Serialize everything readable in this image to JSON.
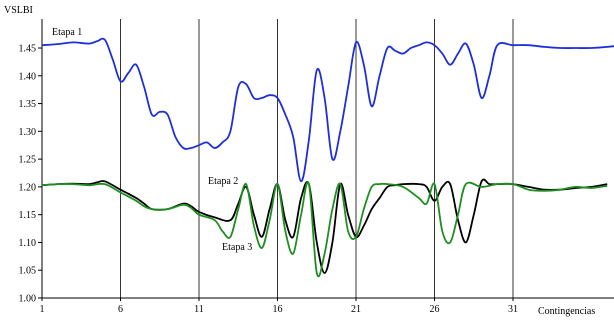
{
  "chart_data": {
    "type": "line",
    "ylabel": "VSLBI",
    "xlabel": "Contingencias",
    "xlim": [
      1,
      38
    ],
    "ylim": [
      1.0,
      1.45
    ],
    "x_ticks": [
      1,
      6,
      11,
      16,
      21,
      26,
      31
    ],
    "y_ticks": [
      1.0,
      1.05,
      1.1,
      1.15,
      1.2,
      1.25,
      1.3,
      1.35,
      1.4,
      1.45
    ],
    "y_tick_labels": [
      "1.00",
      "1.05",
      "1.10",
      "1.15",
      "1.20",
      "1.25",
      "1.30",
      "1.35",
      "1.40",
      "1.45"
    ],
    "grid": "vertical",
    "annotations": [
      "Etapa 1",
      "Etapa 2",
      "Etapa 3"
    ],
    "series": [
      {
        "name": "Etapa 1",
        "color": "#1f2fd6",
        "x": [
          1,
          2,
          3,
          4,
          4.5,
          5,
          5.5,
          6,
          6.5,
          7,
          7.5,
          8,
          8.5,
          9,
          9.5,
          10,
          10.5,
          11,
          11.5,
          12,
          12.5,
          13,
          13.5,
          14,
          14.5,
          15,
          15.5,
          16,
          16.5,
          17,
          17.5,
          18,
          18.5,
          19,
          19.5,
          20,
          20.5,
          21,
          21.5,
          22,
          22.5,
          23,
          23.5,
          24,
          24.5,
          25,
          25.5,
          26,
          26.5,
          27,
          27.5,
          28,
          28.5,
          29,
          29.5,
          30,
          31,
          32,
          33,
          34,
          35,
          36,
          37,
          38
        ],
        "y": [
          1.455,
          1.457,
          1.46,
          1.458,
          1.462,
          1.465,
          1.43,
          1.39,
          1.405,
          1.42,
          1.38,
          1.33,
          1.335,
          1.33,
          1.29,
          1.27,
          1.27,
          1.275,
          1.28,
          1.27,
          1.28,
          1.3,
          1.38,
          1.385,
          1.36,
          1.36,
          1.365,
          1.36,
          1.33,
          1.29,
          1.21,
          1.285,
          1.41,
          1.36,
          1.25,
          1.3,
          1.38,
          1.46,
          1.42,
          1.345,
          1.4,
          1.45,
          1.445,
          1.44,
          1.45,
          1.455,
          1.46,
          1.455,
          1.44,
          1.42,
          1.44,
          1.458,
          1.42,
          1.36,
          1.4,
          1.455,
          1.455,
          1.455,
          1.452,
          1.45,
          1.45,
          1.45,
          1.452,
          1.455
        ]
      },
      {
        "name": "Etapa 2",
        "color": "#000000",
        "x": [
          1,
          2,
          3,
          4,
          4.5,
          5,
          6,
          7,
          7.5,
          8,
          9,
          10,
          10.5,
          11,
          12,
          13,
          13.5,
          14,
          14.5,
          15,
          15.5,
          16,
          16.5,
          17,
          17.5,
          18,
          18.5,
          19,
          19.5,
          20,
          20.5,
          21,
          21.5,
          22,
          22.5,
          23,
          23.5,
          24,
          25,
          25.5,
          26,
          26.5,
          27,
          27.5,
          28,
          28.5,
          29,
          29.5,
          30,
          31,
          32,
          33,
          34,
          35,
          36,
          37
        ],
        "y": [
          1.203,
          1.205,
          1.206,
          1.205,
          1.208,
          1.21,
          1.195,
          1.18,
          1.17,
          1.16,
          1.16,
          1.17,
          1.165,
          1.155,
          1.145,
          1.14,
          1.17,
          1.2,
          1.15,
          1.11,
          1.16,
          1.205,
          1.14,
          1.11,
          1.18,
          1.205,
          1.1,
          1.045,
          1.1,
          1.205,
          1.15,
          1.11,
          1.13,
          1.16,
          1.18,
          1.2,
          1.203,
          1.205,
          1.205,
          1.2,
          1.175,
          1.2,
          1.205,
          1.14,
          1.1,
          1.15,
          1.21,
          1.205,
          1.205,
          1.205,
          1.2,
          1.195,
          1.195,
          1.198,
          1.2,
          1.205
        ]
      },
      {
        "name": "Etapa 3",
        "color": "#1e8f1e",
        "x": [
          1,
          2,
          3,
          4,
          5,
          6,
          7,
          7.5,
          8,
          9,
          10,
          10.5,
          11,
          12,
          12.5,
          13,
          13.5,
          14,
          14.5,
          15,
          15.5,
          16,
          16.5,
          17,
          17.5,
          18,
          18.5,
          19,
          19.5,
          20,
          20.5,
          21,
          21.5,
          22,
          22.5,
          23,
          24,
          25,
          25.5,
          26,
          26.5,
          27,
          27.5,
          28,
          29,
          30,
          31,
          32,
          33,
          34,
          35,
          36,
          37
        ],
        "y": [
          1.203,
          1.205,
          1.205,
          1.203,
          1.205,
          1.19,
          1.175,
          1.165,
          1.16,
          1.16,
          1.168,
          1.162,
          1.15,
          1.14,
          1.12,
          1.11,
          1.16,
          1.205,
          1.13,
          1.09,
          1.14,
          1.205,
          1.12,
          1.08,
          1.15,
          1.205,
          1.045,
          1.08,
          1.16,
          1.205,
          1.12,
          1.11,
          1.16,
          1.2,
          1.205,
          1.205,
          1.2,
          1.18,
          1.17,
          1.205,
          1.12,
          1.1,
          1.15,
          1.205,
          1.2,
          1.205,
          1.205,
          1.195,
          1.193,
          1.195,
          1.2,
          1.198,
          1.202
        ]
      }
    ]
  }
}
